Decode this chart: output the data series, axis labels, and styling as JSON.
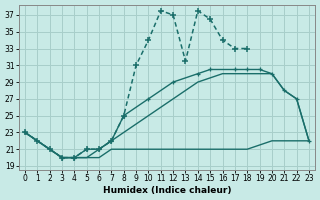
{
  "xlabel": "Humidex (Indice chaleur)",
  "bg_color": "#c8eae6",
  "grid_color": "#a8ceca",
  "line_color": "#1a6e6a",
  "xlim": [
    -0.5,
    23.5
  ],
  "ylim": [
    18.5,
    38.2
  ],
  "xticks": [
    0,
    1,
    2,
    3,
    4,
    5,
    6,
    7,
    8,
    9,
    10,
    11,
    12,
    13,
    14,
    15,
    16,
    17,
    18,
    19,
    20,
    21,
    22,
    23
  ],
  "yticks": [
    19,
    21,
    23,
    25,
    27,
    29,
    31,
    33,
    35,
    37
  ],
  "line1_x": [
    0,
    1,
    2,
    3,
    4,
    5,
    6,
    7,
    8,
    9,
    10,
    11,
    12,
    13,
    14,
    15,
    16,
    17,
    18
  ],
  "line1_y": [
    23,
    22,
    21,
    20,
    20,
    21,
    21,
    22,
    25,
    31,
    34,
    37.5,
    37,
    31.5,
    37.5,
    36.5,
    34,
    33,
    33
  ],
  "line2_x": [
    0,
    3,
    4,
    5,
    6,
    7,
    8,
    10,
    12,
    14,
    15,
    17,
    18,
    19,
    20,
    21,
    22,
    23
  ],
  "line2_y": [
    23,
    20,
    20,
    21,
    21,
    22,
    25,
    27,
    29,
    30,
    30.5,
    30.5,
    30.5,
    30.5,
    30,
    28,
    27,
    22
  ],
  "line3_x": [
    0,
    3,
    4,
    5,
    6,
    7,
    8,
    10,
    12,
    14,
    16,
    17,
    18,
    19,
    20,
    21,
    22,
    23
  ],
  "line3_y": [
    23,
    20,
    20,
    20,
    21,
    22,
    23,
    25,
    27,
    29,
    30,
    30,
    30,
    30,
    30,
    28,
    27,
    22
  ],
  "line4_x": [
    0,
    2,
    3,
    4,
    5,
    6,
    7,
    8,
    9,
    10,
    11,
    12,
    13,
    14,
    15,
    16,
    17,
    18,
    19,
    20,
    21,
    22,
    23
  ],
  "line4_y": [
    23,
    21,
    20,
    20,
    20,
    20,
    21,
    21,
    21,
    21,
    21,
    21,
    21,
    21,
    21,
    21,
    21,
    21,
    21.5,
    22,
    22,
    22,
    22
  ]
}
